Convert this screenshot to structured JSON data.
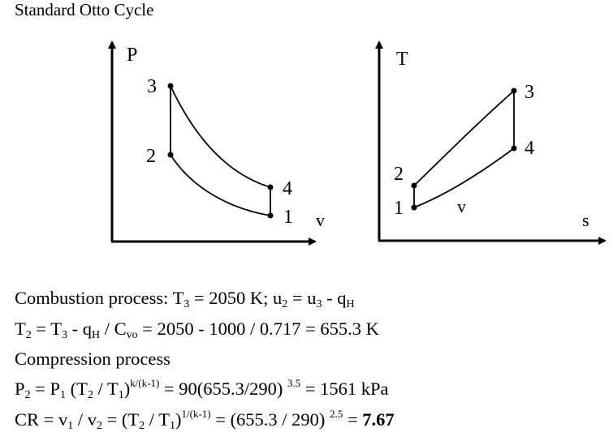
{
  "title": "Standard Otto Cycle",
  "pv_diagram": {
    "y_axis_label": "P",
    "x_axis_label": "v",
    "points": [
      "1",
      "2",
      "3",
      "4"
    ]
  },
  "ts_diagram": {
    "y_axis_label": "T",
    "x_axis_label": "s",
    "process_label": "v",
    "points": [
      "1",
      "2",
      "3",
      "4"
    ]
  },
  "equations": {
    "line1": [
      "Combustion process: T",
      "3",
      " = 2050 K; u",
      "2",
      " = u",
      "3",
      " - q",
      "H"
    ],
    "line2": [
      "T",
      "2",
      " = T",
      "3",
      " - q",
      "H",
      " / C",
      "vo",
      " = 2050 - 1000 / 0.717 = 655.3 K"
    ],
    "line3": "Compression process",
    "line4": [
      "P",
      "2",
      " = P",
      "1",
      " (T",
      "2",
      " / T",
      "1",
      ")",
      "k/(k-1)",
      " = 90(655.3/290) ",
      "3.5",
      " = 1561 kPa"
    ],
    "line5": [
      "CR = v",
      "1",
      " / v",
      "2",
      " = (T",
      "2",
      " / T",
      "1",
      ")",
      "1/(k-1)",
      " = (655.3 / 290) ",
      "2.5",
      " = ",
      "7.67"
    ]
  }
}
